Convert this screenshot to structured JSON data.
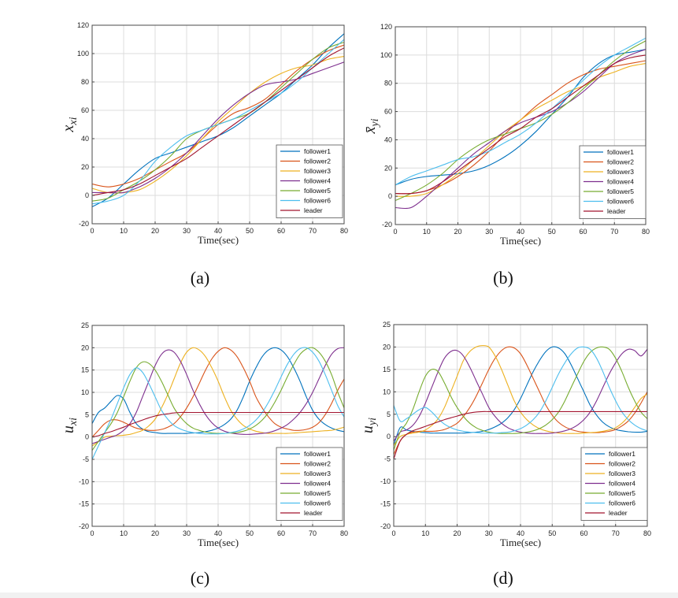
{
  "colors": {
    "follower1": "#0072BD",
    "follower2": "#D95319",
    "follower3": "#EDB120",
    "follower4": "#7E2F8E",
    "follower5": "#77AC30",
    "follower6": "#4DBEEE",
    "leader": "#A2142F"
  },
  "chart_data": [
    {
      "id": "a",
      "type": "line",
      "caption": "(a)",
      "ylabel": "x_{xi}",
      "xlabel": "Time(sec)",
      "xlim": [
        0,
        80
      ],
      "ylim": [
        -20,
        120
      ],
      "xticks": [
        0,
        10,
        20,
        30,
        40,
        50,
        60,
        70,
        80
      ],
      "yticks": [
        -20,
        0,
        20,
        40,
        60,
        80,
        100,
        120
      ],
      "grid": true,
      "legend_position": "bottom-right",
      "x": [
        0,
        5,
        10,
        15,
        20,
        25,
        30,
        35,
        40,
        45,
        50,
        55,
        60,
        65,
        70,
        75,
        80
      ],
      "series": [
        {
          "name": "follower1",
          "values": [
            -8,
            -2,
            8,
            18,
            26,
            30,
            34,
            38,
            42,
            48,
            56,
            64,
            72,
            82,
            92,
            104,
            114
          ]
        },
        {
          "name": "follower2",
          "values": [
            8,
            6,
            8,
            12,
            18,
            24,
            30,
            40,
            50,
            58,
            62,
            68,
            78,
            88,
            96,
            102,
            106
          ]
        },
        {
          "name": "follower3",
          "values": [
            5,
            2,
            2,
            4,
            10,
            18,
            28,
            40,
            52,
            62,
            72,
            80,
            86,
            90,
            92,
            96,
            98
          ]
        },
        {
          "name": "follower4",
          "values": [
            2,
            2,
            2,
            6,
            12,
            20,
            30,
            42,
            54,
            64,
            72,
            78,
            80,
            82,
            86,
            90,
            94
          ]
        },
        {
          "name": "follower5",
          "values": [
            -4,
            -2,
            4,
            10,
            18,
            28,
            40,
            46,
            50,
            54,
            58,
            66,
            76,
            86,
            96,
            104,
            108
          ]
        },
        {
          "name": "follower6",
          "values": [
            -6,
            -4,
            0,
            10,
            24,
            34,
            42,
            46,
            50,
            54,
            60,
            66,
            72,
            80,
            90,
            100,
            110
          ]
        },
        {
          "name": "leader",
          "values": [
            0,
            2,
            4,
            8,
            14,
            20,
            26,
            34,
            42,
            50,
            58,
            66,
            74,
            82,
            90,
            98,
            104
          ]
        }
      ]
    },
    {
      "id": "b",
      "type": "line",
      "caption": "(b)",
      "ylabel": "x̄_{yi}",
      "xlabel": "Time(sec)",
      "xlim": [
        0,
        80
      ],
      "ylim": [
        -20,
        120
      ],
      "xticks": [
        0,
        10,
        20,
        30,
        40,
        50,
        60,
        70,
        80
      ],
      "yticks": [
        -20,
        0,
        20,
        40,
        60,
        80,
        100,
        120
      ],
      "grid": true,
      "legend_position": "bottom-right",
      "x": [
        0,
        5,
        10,
        15,
        20,
        25,
        30,
        35,
        40,
        45,
        50,
        55,
        60,
        65,
        70,
        75,
        80
      ],
      "series": [
        {
          "name": "follower1",
          "values": [
            8,
            12,
            14,
            15,
            16,
            18,
            22,
            28,
            36,
            46,
            58,
            70,
            84,
            94,
            100,
            102,
            104
          ]
        },
        {
          "name": "follower2",
          "values": [
            2,
            2,
            4,
            8,
            14,
            22,
            32,
            44,
            54,
            64,
            72,
            80,
            86,
            90,
            92,
            94,
            96
          ]
        },
        {
          "name": "follower3",
          "values": [
            0,
            0,
            2,
            8,
            16,
            26,
            36,
            46,
            54,
            62,
            68,
            74,
            78,
            84,
            88,
            92,
            94
          ]
        },
        {
          "name": "follower4",
          "values": [
            -8,
            -8,
            0,
            10,
            20,
            30,
            38,
            46,
            52,
            56,
            60,
            66,
            74,
            84,
            94,
            100,
            104
          ]
        },
        {
          "name": "follower5",
          "values": [
            -3,
            2,
            8,
            16,
            26,
            34,
            40,
            44,
            48,
            52,
            58,
            66,
            76,
            86,
            96,
            104,
            110
          ]
        },
        {
          "name": "follower6",
          "values": [
            8,
            14,
            18,
            22,
            26,
            28,
            32,
            38,
            44,
            52,
            62,
            72,
            82,
            92,
            100,
            106,
            112
          ]
        },
        {
          "name": "leader",
          "values": [
            2,
            2,
            4,
            10,
            18,
            26,
            34,
            42,
            48,
            56,
            62,
            70,
            78,
            86,
            94,
            98,
            100
          ]
        }
      ]
    },
    {
      "id": "c",
      "type": "line",
      "caption": "(c)",
      "ylabel": "u_{xi}",
      "xlabel": "Time(sec)",
      "xlim": [
        0,
        80
      ],
      "ylim": [
        -20,
        25
      ],
      "xticks": [
        0,
        10,
        20,
        30,
        40,
        50,
        60,
        70,
        80
      ],
      "yticks": [
        -20,
        -15,
        -10,
        -5,
        0,
        5,
        10,
        15,
        20,
        25
      ],
      "grid": true,
      "legend_position": "bottom-right",
      "x": [
        0,
        2,
        4,
        6,
        8,
        10,
        12,
        14,
        16,
        18,
        20,
        22,
        24,
        26,
        28,
        30,
        32,
        34,
        36,
        38,
        40,
        42,
        44,
        46,
        48,
        50,
        52,
        54,
        56,
        58,
        60,
        62,
        64,
        66,
        68,
        70,
        72,
        74,
        76,
        78,
        80
      ],
      "series": [
        {
          "name": "follower1",
          "values": [
            3,
            5.5,
            6.5,
            8,
            9.3,
            8.5,
            5.5,
            3,
            1.8,
            1.2,
            1,
            0.8,
            0.8,
            0.8,
            0.8,
            0.8,
            0.9,
            1,
            1.2,
            1.5,
            2,
            2.8,
            4,
            6,
            9,
            12.5,
            15.5,
            18,
            19.5,
            20,
            19.5,
            18,
            15.5,
            12.5,
            9,
            6,
            4,
            2.8,
            2,
            1.5,
            1.2
          ]
        },
        {
          "name": "follower2",
          "values": [
            0,
            1.5,
            3,
            3.8,
            3.8,
            3.3,
            2.6,
            2,
            1.7,
            1.5,
            1.5,
            1.7,
            2.2,
            3,
            4.5,
            6.5,
            9,
            12,
            15,
            17.5,
            19.2,
            20,
            19.5,
            18,
            15.5,
            12.5,
            9,
            6.5,
            4.5,
            3,
            2.2,
            1.8,
            1.5,
            1.5,
            1.7,
            2.2,
            3.2,
            5,
            7.5,
            10.5,
            13
          ]
        },
        {
          "name": "follower3",
          "values": [
            -2,
            -1,
            0,
            0.2,
            0.3,
            0.4,
            0.6,
            1,
            1.5,
            2.5,
            4,
            6.5,
            9.5,
            13,
            16.5,
            19,
            20,
            19.5,
            18,
            15.5,
            12.5,
            9,
            6,
            4,
            2.6,
            1.8,
            1.3,
            1,
            0.8,
            0.8,
            0.8,
            0.8,
            0.9,
            1,
            1.1,
            1.2,
            1.3,
            1.4,
            1.5,
            1.8,
            2.2
          ]
        },
        {
          "name": "follower4",
          "values": [
            -1.5,
            -1,
            -0.5,
            0,
            0.5,
            1.5,
            3,
            5.5,
            9,
            12.5,
            16,
            18.5,
            19.5,
            19,
            17,
            14,
            10.5,
            7.5,
            5,
            3.2,
            2,
            1.3,
            0.9,
            0.7,
            0.6,
            0.6,
            0.7,
            0.8,
            1,
            1.4,
            2,
            2.8,
            4,
            5.5,
            7.5,
            10,
            13,
            16,
            18.5,
            19.8,
            20
          ]
        },
        {
          "name": "follower5",
          "values": [
            -3,
            -1,
            1,
            3,
            5.5,
            9,
            12.5,
            15.5,
            16.8,
            16.5,
            15,
            12.5,
            9.5,
            6.5,
            4.5,
            3,
            2,
            1.5,
            1.1,
            0.9,
            0.8,
            0.8,
            0.9,
            1,
            1.3,
            1.8,
            2.6,
            3.8,
            5.5,
            7.8,
            10.5,
            13.5,
            16.2,
            18.5,
            19.7,
            20,
            19,
            17,
            14,
            10,
            6.5
          ]
        },
        {
          "name": "follower6",
          "values": [
            -5,
            -2,
            1,
            4,
            7.5,
            11,
            14,
            15.5,
            14.5,
            12,
            9,
            6,
            4,
            2.6,
            1.8,
            1.3,
            1,
            0.8,
            0.7,
            0.7,
            0.7,
            0.8,
            1,
            1.3,
            1.8,
            2.6,
            3.8,
            5.5,
            7.8,
            10.5,
            13.5,
            16.3,
            18.5,
            19.8,
            20,
            19,
            17,
            14,
            10.5,
            7,
            4.5
          ]
        },
        {
          "name": "leader",
          "values": [
            0,
            0.3,
            0.8,
            1.2,
            1.7,
            2.2,
            2.8,
            3.3,
            3.8,
            4.3,
            4.7,
            5,
            5.2,
            5.4,
            5.5,
            5.5,
            5.5,
            5.5,
            5.5,
            5.5,
            5.5,
            5.5,
            5.5,
            5.5,
            5.5,
            5.5,
            5.5,
            5.5,
            5.5,
            5.5,
            5.5,
            5.5,
            5.5,
            5.5,
            5.5,
            5.5,
            5.5,
            5.5,
            5.5,
            5.5,
            5.5
          ]
        }
      ]
    },
    {
      "id": "d",
      "type": "line",
      "caption": "(d)",
      "ylabel": "u_{yi}",
      "xlabel": "Time(sec)",
      "xlim": [
        0,
        80
      ],
      "ylim": [
        -20,
        25
      ],
      "xticks": [
        0,
        10,
        20,
        30,
        40,
        50,
        60,
        70,
        80
      ],
      "yticks": [
        -20,
        -15,
        -10,
        -5,
        0,
        5,
        10,
        15,
        20,
        25
      ],
      "grid": true,
      "legend_position": "bottom-right",
      "x": [
        0,
        2,
        4,
        6,
        8,
        10,
        12,
        14,
        16,
        18,
        20,
        22,
        24,
        26,
        28,
        30,
        32,
        34,
        36,
        38,
        40,
        42,
        44,
        46,
        48,
        50,
        52,
        54,
        56,
        58,
        60,
        62,
        64,
        66,
        68,
        70,
        72,
        74,
        76,
        78,
        80
      ],
      "series": [
        {
          "name": "follower1",
          "values": [
            -2,
            2,
            1.5,
            1.2,
            1,
            0.9,
            0.8,
            0.8,
            0.8,
            0.8,
            0.8,
            0.8,
            0.9,
            1,
            1.2,
            1.6,
            2.2,
            3,
            4.2,
            6,
            8.5,
            11.5,
            14.5,
            17,
            19,
            20,
            19.8,
            18.5,
            16,
            13,
            10,
            7,
            4.8,
            3.2,
            2.2,
            1.6,
            1.3,
            1.1,
            1,
            1,
            1.2
          ]
        },
        {
          "name": "follower2",
          "values": [
            -4,
            -1,
            0.5,
            1,
            1.2,
            1.2,
            1.2,
            1.3,
            1.6,
            2.2,
            3,
            4.5,
            6.5,
            9,
            12,
            15,
            17.5,
            19.2,
            20,
            19.8,
            18.5,
            16,
            13,
            10,
            7,
            4.8,
            3.2,
            2.2,
            1.6,
            1.2,
            1,
            0.9,
            0.9,
            1,
            1.2,
            1.6,
            2.4,
            3.5,
            5.2,
            7.5,
            10
          ]
        },
        {
          "name": "follower3",
          "values": [
            -2,
            0,
            0.5,
            0.8,
            1,
            1.5,
            2.5,
            4,
            6.5,
            10,
            13.5,
            17,
            19,
            20,
            20.3,
            20,
            18,
            15,
            11.5,
            8,
            5.5,
            3.8,
            2.6,
            1.8,
            1.3,
            1,
            0.8,
            0.7,
            0.7,
            0.7,
            0.8,
            0.9,
            1,
            1.2,
            1.5,
            2,
            3,
            4.5,
            6.5,
            8.5,
            9.5
          ]
        },
        {
          "name": "follower4",
          "values": [
            -1,
            1,
            1.5,
            2.5,
            4.5,
            7.5,
            11,
            14.5,
            17.5,
            19,
            19.2,
            18,
            15.5,
            12.5,
            9.5,
            6.5,
            4.5,
            3,
            2,
            1.4,
            1,
            0.8,
            0.7,
            0.7,
            0.7,
            0.8,
            1,
            1.3,
            1.8,
            2.6,
            3.8,
            5.5,
            8,
            11,
            14,
            16.5,
            18.5,
            19.5,
            19.2,
            18,
            19.5
          ]
        },
        {
          "name": "follower5",
          "values": [
            -3,
            1,
            3,
            6,
            10,
            13.5,
            15,
            14.5,
            12,
            9,
            6.5,
            4.5,
            3,
            2,
            1.4,
            1,
            0.8,
            0.7,
            0.7,
            0.7,
            0.8,
            1,
            1.3,
            1.8,
            2.6,
            3.8,
            5.5,
            8,
            11,
            14,
            16.8,
            18.8,
            19.8,
            20,
            19.5,
            17.5,
            14.5,
            11,
            8,
            5.5,
            4
          ]
        },
        {
          "name": "follower6",
          "values": [
            7,
            3.5,
            4,
            5,
            6,
            6.5,
            5.5,
            4,
            2.8,
            2,
            1.5,
            1.2,
            1,
            0.9,
            0.8,
            0.8,
            0.8,
            0.9,
            1,
            1.3,
            1.8,
            2.6,
            3.8,
            5.5,
            8,
            11,
            14,
            16.5,
            18.5,
            19.8,
            20,
            19.5,
            17.5,
            14.5,
            11,
            8,
            5.5,
            3.8,
            2.6,
            1.8,
            1.3
          ]
        },
        {
          "name": "leader",
          "values": [
            -5,
            -1,
            0.5,
            1.3,
            1.8,
            2.3,
            2.8,
            3.3,
            3.8,
            4.2,
            4.6,
            5,
            5.3,
            5.5,
            5.6,
            5.6,
            5.6,
            5.6,
            5.6,
            5.6,
            5.6,
            5.6,
            5.6,
            5.6,
            5.6,
            5.6,
            5.6,
            5.6,
            5.6,
            5.6,
            5.6,
            5.6,
            5.6,
            5.6,
            5.6,
            5.6,
            5.6,
            5.6,
            5.6,
            5.6,
            5.6
          ]
        }
      ]
    }
  ]
}
